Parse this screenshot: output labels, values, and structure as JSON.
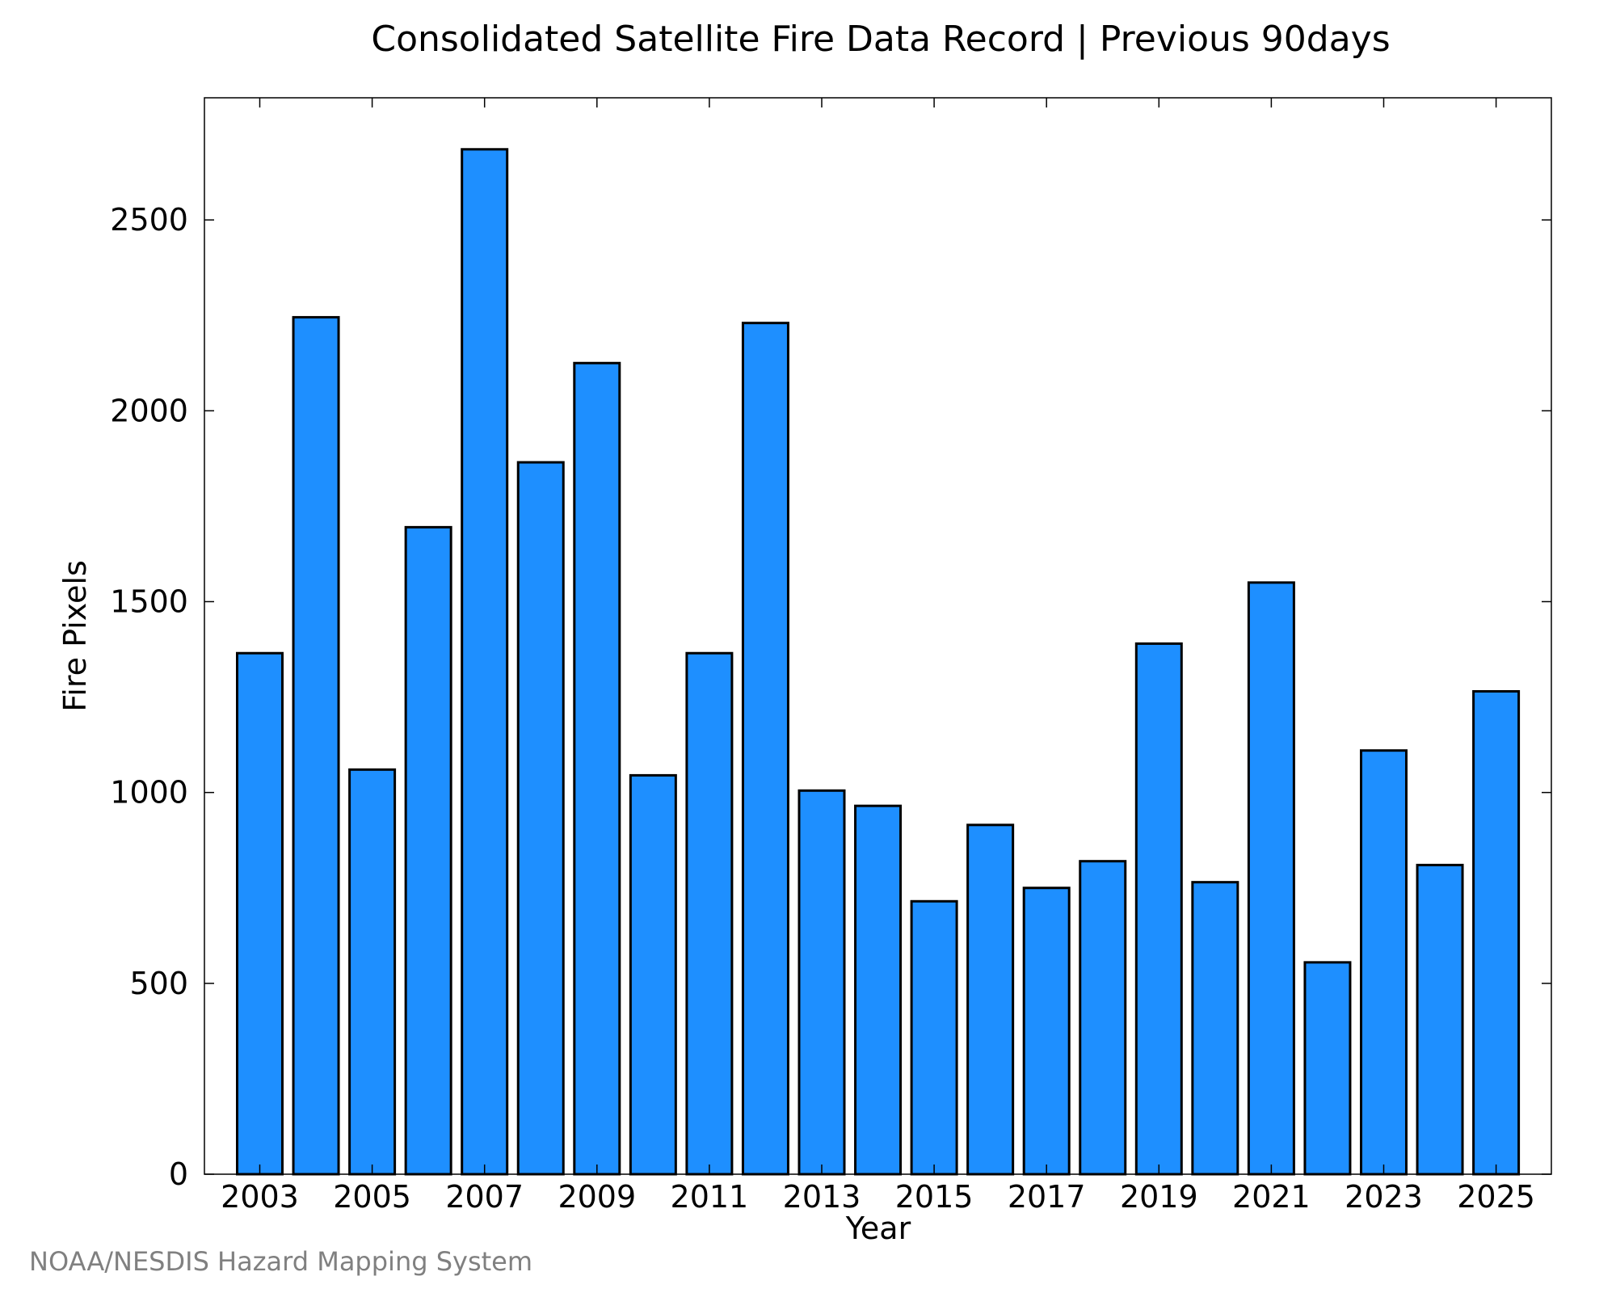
{
  "chart_data": {
    "type": "bar",
    "title": "Consolidated Satellite Fire Data Record | Previous 90days",
    "xlabel": "Year",
    "ylabel": "Fire Pixels",
    "categories": [
      "2003",
      "2004",
      "2005",
      "2006",
      "2007",
      "2008",
      "2009",
      "2010",
      "2011",
      "2012",
      "2013",
      "2014",
      "2015",
      "2016",
      "2017",
      "2018",
      "2019",
      "2020",
      "2021",
      "2022",
      "2023",
      "2024",
      "2025"
    ],
    "values": [
      1365,
      2245,
      1060,
      1695,
      2685,
      1865,
      2125,
      1045,
      1365,
      2230,
      1005,
      965,
      715,
      915,
      750,
      820,
      1390,
      765,
      1550,
      555,
      1110,
      810,
      1265
    ],
    "x_tick_labels": [
      "2003",
      "2005",
      "2007",
      "2009",
      "2011",
      "2013",
      "2015",
      "2017",
      "2019",
      "2021",
      "2023",
      "2025"
    ],
    "y_tick_labels": [
      "0",
      "500",
      "1000",
      "1500",
      "2000",
      "2500"
    ],
    "ylim": [
      0,
      2820
    ],
    "grid": false,
    "bar_color": "#1E8FFF",
    "bar_edge_color": "#000000"
  },
  "credit": "NOAA/NESDIS Hazard Mapping System"
}
